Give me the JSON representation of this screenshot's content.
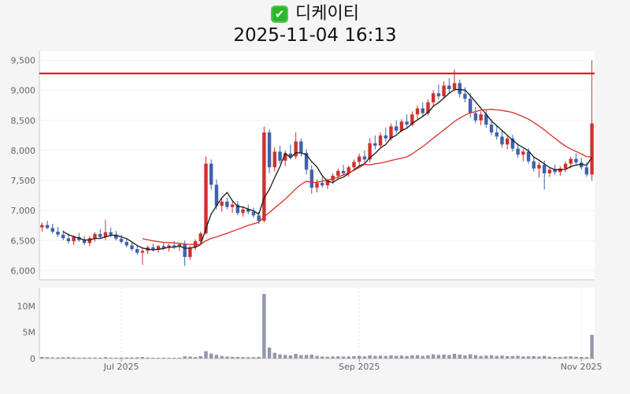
{
  "header": {
    "title": "디케이티",
    "subtitle": "2025-11-04 16:13",
    "checkbox": {
      "glyph": "✔",
      "color": "#2ab829"
    }
  },
  "chart_data": {
    "type": "candlestick",
    "title": "디케이티",
    "timestamp": "2025-11-04 16:13",
    "series_format": [
      "open",
      "high",
      "low",
      "close",
      "volume"
    ],
    "y_axis": {
      "ticks": [
        6000,
        6500,
        7000,
        7500,
        8000,
        8500,
        9000,
        9500
      ],
      "tick_labels": [
        "6,000",
        "6,500",
        "7,000",
        "7,500",
        "8,000",
        "8,500",
        "9,000",
        "9,500"
      ],
      "range": [
        5850,
        9650
      ]
    },
    "volume_axis": {
      "ticks": [
        0,
        5000000,
        10000000
      ],
      "tick_labels": [
        "0",
        "5M",
        "10M"
      ],
      "range": [
        0,
        13500000
      ]
    },
    "x_axis": {
      "tick_labels": [
        "Jul 2025",
        "Sep 2025",
        "Nov 2025"
      ],
      "tick_indices": [
        15,
        60,
        102
      ]
    },
    "annotations": {
      "resistance_line": {
        "value": 9280,
        "color": "#e60000"
      }
    },
    "moving_averages": [
      {
        "period": 5,
        "color": "#1a1a1a"
      },
      {
        "period": 20,
        "color": "#d93025"
      }
    ],
    "colors": {
      "up": "#cf3131",
      "down": "#3e63ad",
      "volume": "#9298ab",
      "axis": "#c8c8c8",
      "plot_bg": "#ffffff",
      "page_bg": "#f5f5f5"
    },
    "candles": [
      [
        6720,
        6800,
        6650,
        6760,
        300000
      ],
      [
        6760,
        6830,
        6690,
        6710,
        260000
      ],
      [
        6710,
        6780,
        6620,
        6650,
        230000
      ],
      [
        6650,
        6730,
        6560,
        6600,
        210000
      ],
      [
        6600,
        6670,
        6510,
        6540,
        240000
      ],
      [
        6540,
        6620,
        6450,
        6490,
        260000
      ],
      [
        6490,
        6590,
        6430,
        6560,
        220000
      ],
      [
        6560,
        6630,
        6480,
        6510,
        180000
      ],
      [
        6510,
        6580,
        6430,
        6460,
        190000
      ],
      [
        6460,
        6570,
        6410,
        6540,
        180000
      ],
      [
        6540,
        6640,
        6480,
        6610,
        200000
      ],
      [
        6610,
        6690,
        6530,
        6560,
        170000
      ],
      [
        6560,
        6850,
        6510,
        6640,
        280000
      ],
      [
        6640,
        6720,
        6560,
        6600,
        180000
      ],
      [
        6600,
        6660,
        6500,
        6530,
        170000
      ],
      [
        6530,
        6600,
        6450,
        6480,
        190000
      ],
      [
        6480,
        6540,
        6390,
        6420,
        210000
      ],
      [
        6420,
        6480,
        6330,
        6360,
        220000
      ],
      [
        6360,
        6430,
        6270,
        6300,
        230000
      ],
      [
        6300,
        6380,
        6100,
        6330,
        300000
      ],
      [
        6330,
        6420,
        6280,
        6390,
        190000
      ],
      [
        6390,
        6450,
        6320,
        6350,
        150000
      ],
      [
        6350,
        6430,
        6300,
        6410,
        140000
      ],
      [
        6410,
        6470,
        6340,
        6380,
        130000
      ],
      [
        6380,
        6450,
        6320,
        6420,
        140000
      ],
      [
        6420,
        6490,
        6360,
        6400,
        130000
      ],
      [
        6400,
        6460,
        6330,
        6440,
        120000
      ],
      [
        6440,
        6500,
        6080,
        6230,
        420000
      ],
      [
        6230,
        6420,
        6180,
        6390,
        380000
      ],
      [
        6390,
        6520,
        6340,
        6490,
        300000
      ],
      [
        6490,
        6650,
        6440,
        6620,
        450000
      ],
      [
        6620,
        7900,
        6600,
        7780,
        1400000
      ],
      [
        7780,
        7850,
        7350,
        7430,
        950000
      ],
      [
        7430,
        7520,
        7020,
        7080,
        700000
      ],
      [
        7080,
        7200,
        6980,
        7150,
        480000
      ],
      [
        7150,
        7220,
        7020,
        7060,
        380000
      ],
      [
        7060,
        7150,
        6960,
        7100,
        320000
      ],
      [
        7100,
        7160,
        6920,
        6960,
        300000
      ],
      [
        6960,
        7060,
        6900,
        7020,
        280000
      ],
      [
        7020,
        7100,
        6940,
        6980,
        260000
      ],
      [
        6980,
        7050,
        6880,
        6920,
        270000
      ],
      [
        6920,
        6980,
        6780,
        6830,
        320000
      ],
      [
        6830,
        8400,
        6800,
        8300,
        12300000
      ],
      [
        8300,
        8350,
        7620,
        7720,
        2100000
      ],
      [
        7720,
        8050,
        7650,
        7980,
        1100000
      ],
      [
        7980,
        8080,
        7780,
        7830,
        800000
      ],
      [
        7830,
        8000,
        7740,
        7950,
        700000
      ],
      [
        7950,
        8100,
        7850,
        7900,
        600000
      ],
      [
        7900,
        8300,
        7860,
        8150,
        900000
      ],
      [
        8150,
        8200,
        7900,
        7960,
        650000
      ],
      [
        7960,
        8020,
        7600,
        7680,
        700000
      ],
      [
        7680,
        7750,
        7280,
        7380,
        750000
      ],
      [
        7380,
        7520,
        7300,
        7460,
        500000
      ],
      [
        7460,
        7560,
        7380,
        7420,
        380000
      ],
      [
        7420,
        7530,
        7360,
        7500,
        350000
      ],
      [
        7500,
        7620,
        7440,
        7580,
        400000
      ],
      [
        7580,
        7700,
        7520,
        7660,
        420000
      ],
      [
        7660,
        7760,
        7580,
        7620,
        380000
      ],
      [
        7620,
        7750,
        7560,
        7720,
        400000
      ],
      [
        7720,
        7850,
        7660,
        7810,
        450000
      ],
      [
        7810,
        7950,
        7750,
        7900,
        500000
      ],
      [
        7900,
        8000,
        7800,
        7850,
        420000
      ],
      [
        7850,
        8200,
        7800,
        8120,
        600000
      ],
      [
        8120,
        8250,
        8020,
        8080,
        500000
      ],
      [
        8080,
        8300,
        8040,
        8250,
        550000
      ],
      [
        8250,
        8380,
        8150,
        8200,
        480000
      ],
      [
        8200,
        8450,
        8160,
        8400,
        600000
      ],
      [
        8400,
        8500,
        8280,
        8330,
        520000
      ],
      [
        8330,
        8520,
        8300,
        8480,
        560000
      ],
      [
        8480,
        8600,
        8380,
        8430,
        480000
      ],
      [
        8430,
        8650,
        8400,
        8600,
        600000
      ],
      [
        8600,
        8750,
        8520,
        8700,
        650000
      ],
      [
        8700,
        8800,
        8560,
        8620,
        500000
      ],
      [
        8620,
        8850,
        8580,
        8800,
        620000
      ],
      [
        8800,
        9000,
        8720,
        8950,
        800000
      ],
      [
        8950,
        9100,
        8850,
        8900,
        700000
      ],
      [
        8900,
        9150,
        8860,
        9080,
        750000
      ],
      [
        9080,
        9200,
        8950,
        9020,
        680000
      ],
      [
        9020,
        9350,
        8980,
        9120,
        900000
      ],
      [
        9120,
        9180,
        8880,
        8940,
        750000
      ],
      [
        8940,
        9050,
        8800,
        8860,
        600000
      ],
      [
        8860,
        8950,
        8550,
        8620,
        800000
      ],
      [
        8620,
        8720,
        8450,
        8500,
        650000
      ],
      [
        8500,
        8650,
        8420,
        8600,
        500000
      ],
      [
        8600,
        8680,
        8380,
        8430,
        550000
      ],
      [
        8430,
        8520,
        8250,
        8300,
        600000
      ],
      [
        8300,
        8420,
        8180,
        8230,
        500000
      ],
      [
        8230,
        8330,
        8050,
        8100,
        550000
      ],
      [
        8100,
        8250,
        8020,
        8200,
        450000
      ],
      [
        8200,
        8260,
        7980,
        8030,
        480000
      ],
      [
        8030,
        8120,
        7880,
        7930,
        520000
      ],
      [
        7930,
        8020,
        7820,
        7980,
        400000
      ],
      [
        7980,
        8040,
        7780,
        7820,
        420000
      ],
      [
        7820,
        7900,
        7650,
        7700,
        450000
      ],
      [
        7700,
        7800,
        7550,
        7760,
        400000
      ],
      [
        7760,
        7830,
        7350,
        7620,
        500000
      ],
      [
        7620,
        7720,
        7560,
        7680,
        350000
      ],
      [
        7680,
        7760,
        7600,
        7640,
        300000
      ],
      [
        7640,
        7740,
        7580,
        7700,
        320000
      ],
      [
        7700,
        7820,
        7640,
        7780,
        380000
      ],
      [
        7780,
        7900,
        7700,
        7860,
        420000
      ],
      [
        7860,
        7950,
        7760,
        7800,
        350000
      ],
      [
        7800,
        7880,
        7680,
        7720,
        300000
      ],
      [
        7720,
        7800,
        7560,
        7600,
        280000
      ],
      [
        7600,
        9500,
        7500,
        8450,
        4500000
      ]
    ]
  }
}
